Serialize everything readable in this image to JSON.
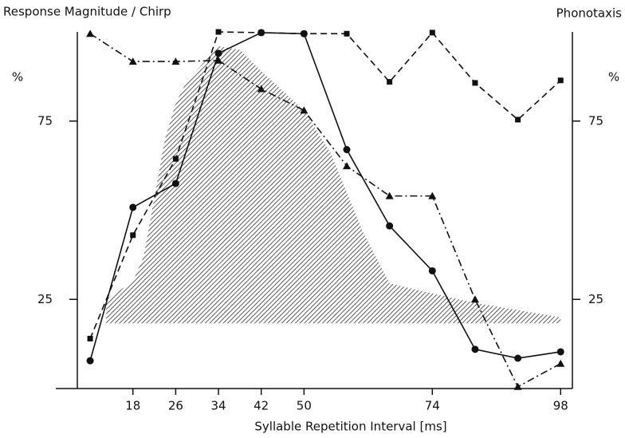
{
  "chart_data": {
    "type": "line",
    "title": "Response Magnitude / Chirp",
    "y2title": "Phonotaxis",
    "ylabel": "%",
    "y2label": "%",
    "xlabel": "Syllable Repetition Interval [ms]",
    "xlim": [
      7.6,
      100.2
    ],
    "xticks": [
      18,
      26,
      34,
      42,
      50,
      74,
      98
    ],
    "ylim": [
      0,
      100
    ],
    "yticks": [
      25,
      75
    ],
    "y2lim": [
      0,
      100
    ],
    "y2ticks": [
      25,
      75
    ],
    "x": [
      10,
      18,
      26,
      34,
      42,
      50,
      58,
      66,
      74,
      82,
      90,
      98
    ],
    "series": [
      {
        "name": "circle",
        "marker": "circle",
        "dash": "solid",
        "color": "#111",
        "values": [
          7.8,
          50.8,
          57.5,
          94,
          99.8,
          99.5,
          67,
          45.6,
          33,
          11,
          8.5,
          10.3
        ]
      },
      {
        "name": "triangle",
        "marker": "triangle",
        "dash": "dashdot",
        "color": "#111",
        "values": [
          99.5,
          91.7,
          91.7,
          92,
          84,
          78,
          62.4,
          54,
          54,
          25,
          0.5,
          7
        ]
      },
      {
        "name": "square",
        "marker": "square",
        "dash": "dashed",
        "color": "#111",
        "values": [
          14,
          43,
          64.4,
          100,
          99.8,
          99.5,
          99.5,
          86,
          99.8,
          85.7,
          75.4,
          86.4
        ],
        "axis": "y2"
      }
    ],
    "area": {
      "x": [
        13,
        18,
        20,
        24,
        26,
        28,
        34,
        38,
        42,
        50,
        55,
        61,
        66,
        73,
        82,
        98
      ],
      "upper": [
        25,
        30,
        37,
        70,
        80,
        86,
        96,
        95,
        89,
        78,
        66,
        44,
        29.5,
        27,
        24,
        20
      ],
      "lower": 18.3,
      "color": "#333"
    }
  }
}
